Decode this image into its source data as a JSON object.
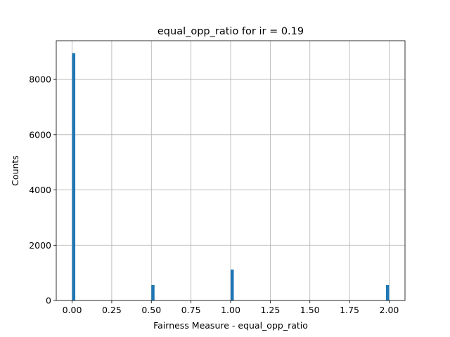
{
  "chart_data": {
    "type": "bar",
    "title": "equal_opp_ratio for ir = 0.19",
    "xlabel": "Fairness Measure - equal_opp_ratio",
    "ylabel": "Counts",
    "xlim": [
      -0.1,
      2.1
    ],
    "ylim": [
      0,
      9400
    ],
    "x_ticks": [
      0.0,
      0.25,
      0.5,
      0.75,
      1.0,
      1.25,
      1.5,
      1.75,
      2.0
    ],
    "x_tick_labels": [
      "0.00",
      "0.25",
      "0.50",
      "0.75",
      "1.00",
      "1.25",
      "1.50",
      "1.75",
      "2.00"
    ],
    "y_ticks": [
      0,
      2000,
      4000,
      6000,
      8000
    ],
    "y_tick_labels": [
      "0",
      "2000",
      "4000",
      "6000",
      "8000"
    ],
    "grid": true,
    "bar_color": "#1f77b4",
    "bins": [
      {
        "x0": 0.0,
        "x1": 0.02,
        "count": 8950
      },
      {
        "x0": 0.5,
        "x1": 0.52,
        "count": 560
      },
      {
        "x0": 1.0,
        "x1": 1.02,
        "count": 1120
      },
      {
        "x0": 1.98,
        "x1": 2.0,
        "count": 560
      }
    ]
  }
}
